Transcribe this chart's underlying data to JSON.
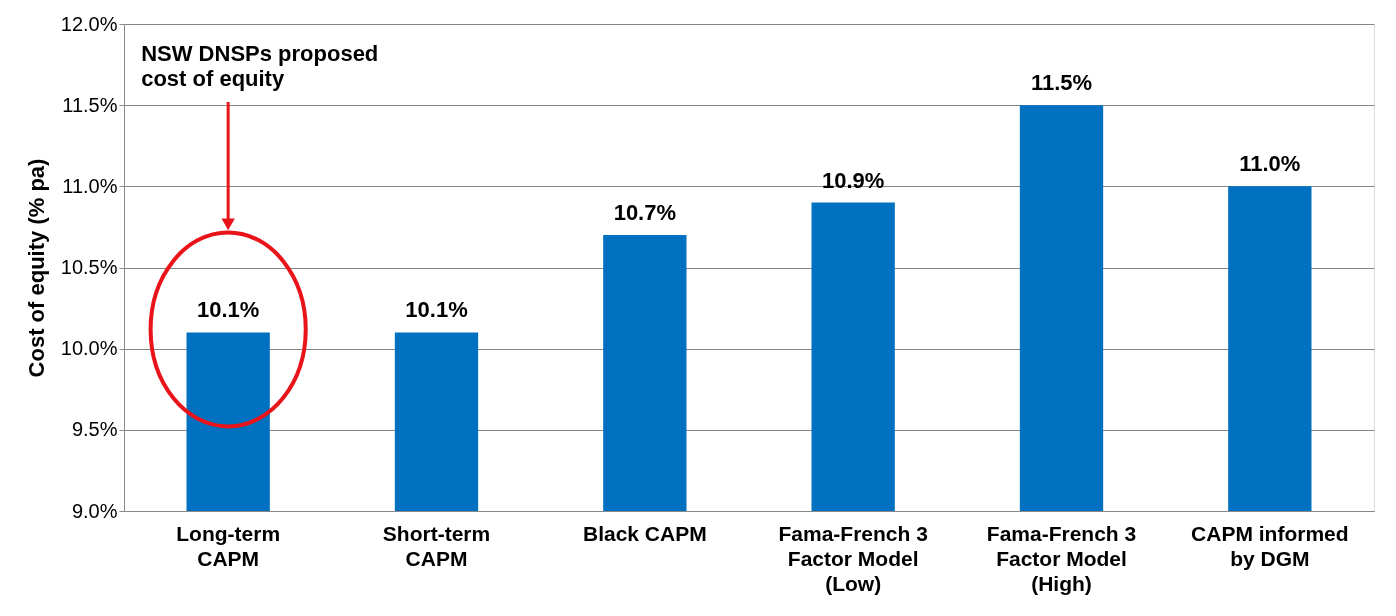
{
  "chart_data": {
    "type": "bar",
    "ylabel": "Cost of equity (% pa)",
    "categories": [
      "Long-term CAPM",
      "Short-term CAPM",
      "Black CAPM",
      "Fama-French 3 Factor Model (Low)",
      "Fama-French 3 Factor Model (High)",
      "CAPM informed by DGM"
    ],
    "values": [
      10.1,
      10.1,
      10.7,
      10.9,
      11.5,
      11.0
    ],
    "value_labels": [
      "10.1%",
      "10.1%",
      "10.7%",
      "10.9%",
      "11.5%",
      "11.0%"
    ],
    "color": "#0070c0",
    "ylim": [
      9.0,
      12.0
    ],
    "yticks": [
      {
        "value": 9.0,
        "label": "9.0%"
      },
      {
        "value": 9.5,
        "label": "9.5%"
      },
      {
        "value": 10.0,
        "label": "10.0%"
      },
      {
        "value": 10.5,
        "label": "10.5%"
      },
      {
        "value": 11.0,
        "label": "11.0%"
      },
      {
        "value": 11.5,
        "label": "11.5%"
      },
      {
        "value": 12.0,
        "label": "12.0%"
      }
    ],
    "grid": "y",
    "annotations": [
      "NSW DNSPs proposed\ncost of equity"
    ]
  }
}
